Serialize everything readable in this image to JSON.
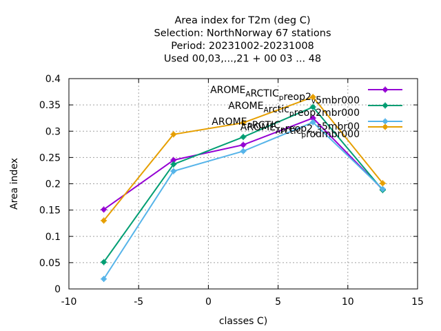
{
  "chart_data": {
    "type": "line",
    "title_lines": [
      "Area index  for T2m (deg C)",
      "Selection: NorthNorway      67 stations",
      "Period: 20231002-20231008",
      "Used  00,03,...,21  + 00 03 ... 48"
    ],
    "xlabel": "classes C)",
    "ylabel": "Area index",
    "xlim": [
      -10,
      15
    ],
    "ylim": [
      0,
      0.4
    ],
    "xticks": [
      -10,
      -5,
      0,
      5,
      10,
      15
    ],
    "yticks": [
      0,
      0.05,
      0.1,
      0.15,
      0.2,
      0.25,
      0.3,
      0.35,
      0.4
    ],
    "grid": true,
    "legend_position": "top-right",
    "x": [
      -7.5,
      -2.5,
      2.5,
      7.5,
      12.5
    ],
    "series": [
      {
        "name": "AROME_ARCTIC_preop2_v5mbr000",
        "legend_parts": [
          [
            "AROME",
            "n"
          ],
          [
            "A",
            "s"
          ],
          [
            "RCTIC",
            "n"
          ],
          [
            "p",
            "s"
          ],
          [
            "reop2",
            "n"
          ],
          [
            "v",
            "s"
          ],
          [
            "5mbr000",
            "n"
          ]
        ],
        "color": "#9400d3",
        "values": [
          0.151,
          0.245,
          0.274,
          0.325,
          0.189
        ]
      },
      {
        "name": "AROME_Arctic_preop2mbr000",
        "legend_parts": [
          [
            "AROME",
            "n"
          ],
          [
            "A",
            "s"
          ],
          [
            "rctic",
            "n"
          ],
          [
            "p",
            "s"
          ],
          [
            "reop2mbr000",
            "n"
          ]
        ],
        "color": "#009e73",
        "values": [
          0.051,
          0.237,
          0.289,
          0.346,
          0.188
        ]
      },
      {
        "name": "AROME_ARCTIC_preop2_v5_5mbr00",
        "legend_parts": [
          [
            "AROME",
            "n"
          ],
          [
            "A",
            "s"
          ],
          [
            "RCTIC",
            "n"
          ],
          [
            "p",
            "s"
          ],
          [
            "reop2",
            "n"
          ],
          [
            "v",
            "s"
          ],
          [
            "5",
            "p"
          ],
          [
            "5mbr00",
            "n"
          ]
        ],
        "color": "#56b4e9",
        "values": [
          0.019,
          0.224,
          0.262,
          0.317,
          0.19
        ]
      },
      {
        "name": "AROME_Arctic_prodmbr000",
        "legend_parts": [
          [
            "AROME",
            "n"
          ],
          [
            "A",
            "s"
          ],
          [
            "rctic",
            "n"
          ],
          [
            "p",
            "s"
          ],
          [
            "rodmbr000",
            "n"
          ]
        ],
        "color": "#e69f00",
        "values": [
          0.13,
          0.294,
          0.316,
          0.365,
          0.201
        ]
      }
    ]
  }
}
